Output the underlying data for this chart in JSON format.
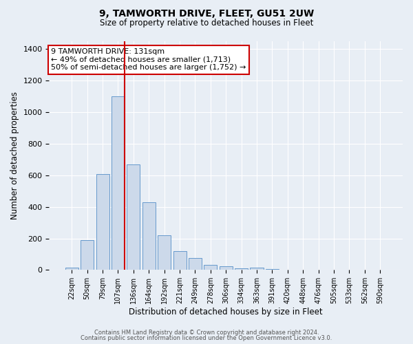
{
  "title": "9, TAMWORTH DRIVE, FLEET, GU51 2UW",
  "subtitle": "Size of property relative to detached houses in Fleet",
  "xlabel": "Distribution of detached houses by size in Fleet",
  "ylabel": "Number of detached properties",
  "bar_labels": [
    "22sqm",
    "50sqm",
    "79sqm",
    "107sqm",
    "136sqm",
    "164sqm",
    "192sqm",
    "221sqm",
    "249sqm",
    "278sqm",
    "306sqm",
    "334sqm",
    "363sqm",
    "391sqm",
    "420sqm",
    "448sqm",
    "476sqm",
    "505sqm",
    "533sqm",
    "562sqm",
    "590sqm"
  ],
  "bar_values": [
    15,
    190,
    610,
    1100,
    670,
    430,
    220,
    120,
    75,
    30,
    25,
    10,
    13,
    5,
    2,
    1,
    0,
    0,
    0,
    0,
    0
  ],
  "bar_color": "#ccd9ea",
  "bar_edge_color": "#6699cc",
  "vline_color": "#cc0000",
  "vline_pos": 3.42,
  "annotation_text": "9 TAMWORTH DRIVE: 131sqm\n← 49% of detached houses are smaller (1,713)\n50% of semi-detached houses are larger (1,752) →",
  "annotation_box_facecolor": "#ffffff",
  "annotation_box_edgecolor": "#cc0000",
  "ylim": [
    0,
    1450
  ],
  "yticks": [
    0,
    200,
    400,
    600,
    800,
    1000,
    1200,
    1400
  ],
  "footer1": "Contains HM Land Registry data © Crown copyright and database right 2024.",
  "footer2": "Contains public sector information licensed under the Open Government Licence v3.0.",
  "bg_color": "#e8eef5",
  "plot_bg_color": "#e8eef5"
}
